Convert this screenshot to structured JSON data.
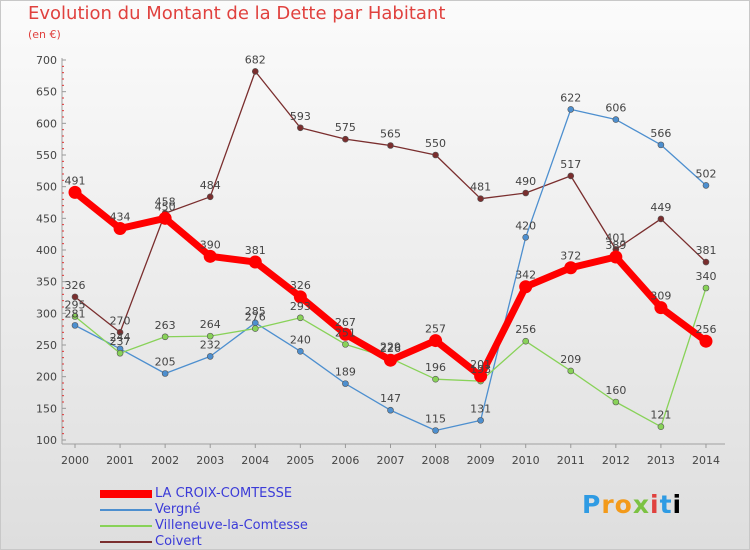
{
  "header": {
    "title": "Evolution du Montant de la Dette par Habitant",
    "unit": "(en €)"
  },
  "logo": {
    "text": "Proxiti"
  },
  "chart_data": {
    "type": "line",
    "title": "Evolution du Montant de la Dette par Habitant",
    "ylabel": "(en €)",
    "xlabel": "",
    "ylim": [
      100,
      700
    ],
    "yticks": [
      100,
      150,
      200,
      250,
      300,
      350,
      400,
      450,
      500,
      550,
      600,
      650,
      700
    ],
    "categories": [
      "2000",
      "2001",
      "2002",
      "2003",
      "2004",
      "2005",
      "2006",
      "2007",
      "2008",
      "2009",
      "2010",
      "2011",
      "2012",
      "2013",
      "2014"
    ],
    "grid": false,
    "legend_position": "bottom-left",
    "series": [
      {
        "name": "LA CROIX-COMTESSE",
        "color": "#ff0000",
        "values": [
          491,
          434,
          450,
          390,
          381,
          326,
          267,
          226,
          257,
          201,
          342,
          372,
          389,
          309,
          256
        ]
      },
      {
        "name": "Vergné",
        "color": "#4d8fcf",
        "values": [
          281,
          244,
          205,
          232,
          285,
          240,
          189,
          147,
          115,
          131,
          420,
          622,
          606,
          566,
          502
        ]
      },
      {
        "name": "Villeneuve-la-Comtesse",
        "color": "#88d258",
        "values": [
          295,
          237,
          263,
          264,
          276,
          293,
          251,
          229,
          196,
          193,
          256,
          209,
          160,
          121,
          340
        ]
      },
      {
        "name": "Coivert",
        "color": "#7a2e2e",
        "values": [
          326,
          270,
          458,
          484,
          682,
          593,
          575,
          565,
          550,
          481,
          490,
          517,
          401,
          449,
          381
        ]
      }
    ]
  }
}
